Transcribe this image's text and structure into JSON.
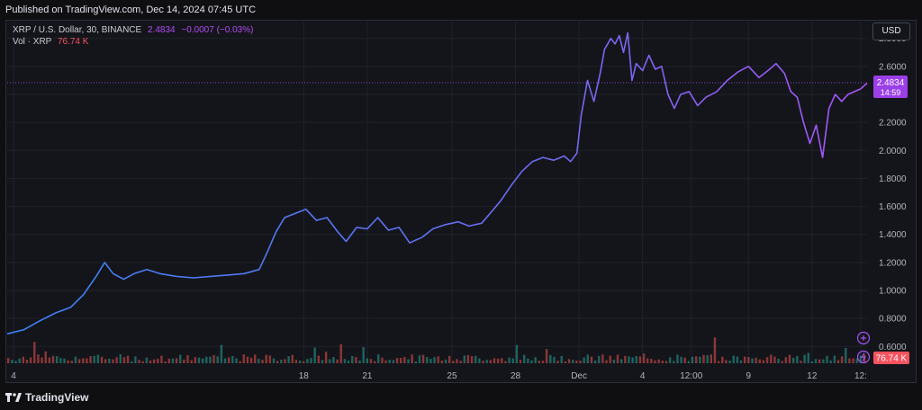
{
  "header": {
    "published": "Published on TradingView.com, Dec 14, 2024 07:45 UTC"
  },
  "legend": {
    "symbol": "XRP / U.S. Dollar, 30, BINANCE",
    "last": "2.4834",
    "change": "−0.0007 (−0.03%)",
    "vol_label": "Vol · XRP",
    "vol_value": "76.74 K"
  },
  "currency_button": "USD",
  "footer": {
    "brand": "TradingView"
  },
  "colors": {
    "line_start": "#3b82f6",
    "line_end": "#a855f7",
    "price_tag": "#9b3fe8",
    "vol_tag": "#f7525f",
    "vol_up": "#26a69a",
    "vol_down": "#ef5350"
  },
  "chart_data": {
    "type": "line",
    "title": "XRP / U.S. Dollar, 30, BINANCE",
    "y_axis": {
      "ticks": [
        "0.6000",
        "0.8000",
        "1.0000",
        "1.2000",
        "1.4000",
        "1.6000",
        "1.8000",
        "2.0000",
        "2.2000",
        "2.4000",
        "2.6000",
        "2.8000"
      ],
      "ylim": [
        0.48,
        2.92
      ],
      "position": "right"
    },
    "x_axis": {
      "ticks": [
        {
          "label": "4",
          "x": 0.3
        },
        {
          "label": "18",
          "x": 14
        },
        {
          "label": "21",
          "x": 17
        },
        {
          "label": "25",
          "x": 21
        },
        {
          "label": "28",
          "x": 24
        },
        {
          "label": "Dec",
          "x": 27
        },
        {
          "label": "4",
          "x": 30
        },
        {
          "label": "12:00",
          "x": 32.3
        },
        {
          "label": "9",
          "x": 35
        },
        {
          "label": "12",
          "x": 38
        },
        {
          "label": "12:",
          "x": 40.3
        }
      ],
      "xlim": [
        0,
        40.6
      ]
    },
    "series": [
      {
        "points": [
          [
            0,
            0.69
          ],
          [
            0.8,
            0.72
          ],
          [
            1.5,
            0.78
          ],
          [
            2.3,
            0.84
          ],
          [
            3,
            0.88
          ],
          [
            3.6,
            0.97
          ],
          [
            4.2,
            1.1
          ],
          [
            4.6,
            1.2
          ],
          [
            5,
            1.12
          ],
          [
            5.5,
            1.08
          ],
          [
            6,
            1.12
          ],
          [
            6.6,
            1.15
          ],
          [
            7.2,
            1.12
          ],
          [
            8,
            1.1
          ],
          [
            8.8,
            1.09
          ],
          [
            9.6,
            1.1
          ],
          [
            10.4,
            1.11
          ],
          [
            11.2,
            1.12
          ],
          [
            11.9,
            1.15
          ],
          [
            12.3,
            1.28
          ],
          [
            12.7,
            1.42
          ],
          [
            13.1,
            1.52
          ],
          [
            13.6,
            1.55
          ],
          [
            14.1,
            1.58
          ],
          [
            14.6,
            1.5
          ],
          [
            15.1,
            1.52
          ],
          [
            15.6,
            1.42
          ],
          [
            16,
            1.35
          ],
          [
            16.5,
            1.45
          ],
          [
            17,
            1.44
          ],
          [
            17.5,
            1.52
          ],
          [
            18,
            1.43
          ],
          [
            18.5,
            1.45
          ],
          [
            19,
            1.34
          ],
          [
            19.6,
            1.38
          ],
          [
            20.1,
            1.44
          ],
          [
            20.7,
            1.47
          ],
          [
            21.3,
            1.49
          ],
          [
            21.8,
            1.46
          ],
          [
            22.4,
            1.48
          ],
          [
            22.8,
            1.55
          ],
          [
            23.3,
            1.64
          ],
          [
            23.8,
            1.75
          ],
          [
            24.3,
            1.85
          ],
          [
            24.8,
            1.92
          ],
          [
            25.3,
            1.95
          ],
          [
            25.8,
            1.93
          ],
          [
            26.3,
            1.96
          ],
          [
            26.6,
            1.92
          ],
          [
            26.9,
            1.98
          ],
          [
            27.1,
            2.25
          ],
          [
            27.4,
            2.5
          ],
          [
            27.7,
            2.35
          ],
          [
            28,
            2.55
          ],
          [
            28.2,
            2.72
          ],
          [
            28.5,
            2.8
          ],
          [
            28.7,
            2.76
          ],
          [
            28.9,
            2.82
          ],
          [
            29.1,
            2.7
          ],
          [
            29.3,
            2.84
          ],
          [
            29.5,
            2.5
          ],
          [
            29.7,
            2.62
          ],
          [
            30,
            2.57
          ],
          [
            30.3,
            2.68
          ],
          [
            30.6,
            2.58
          ],
          [
            30.9,
            2.6
          ],
          [
            31.2,
            2.4
          ],
          [
            31.5,
            2.3
          ],
          [
            31.8,
            2.4
          ],
          [
            32.2,
            2.42
          ],
          [
            32.6,
            2.32
          ],
          [
            33,
            2.38
          ],
          [
            33.5,
            2.42
          ],
          [
            34,
            2.5
          ],
          [
            34.5,
            2.56
          ],
          [
            35,
            2.6
          ],
          [
            35.5,
            2.52
          ],
          [
            36,
            2.58
          ],
          [
            36.3,
            2.62
          ],
          [
            36.7,
            2.55
          ],
          [
            37,
            2.42
          ],
          [
            37.3,
            2.38
          ],
          [
            37.6,
            2.2
          ],
          [
            37.9,
            2.05
          ],
          [
            38.2,
            2.18
          ],
          [
            38.5,
            1.95
          ],
          [
            38.8,
            2.3
          ],
          [
            39.1,
            2.4
          ],
          [
            39.4,
            2.35
          ],
          [
            39.7,
            2.4
          ],
          [
            40,
            2.42
          ],
          [
            40.3,
            2.44
          ],
          [
            40.6,
            2.48
          ]
        ]
      }
    ],
    "last_price": 2.4834,
    "last_price_label": "2.4834",
    "countdown_label": "14:59",
    "volume_tag": "76.74 K",
    "grid": true
  }
}
